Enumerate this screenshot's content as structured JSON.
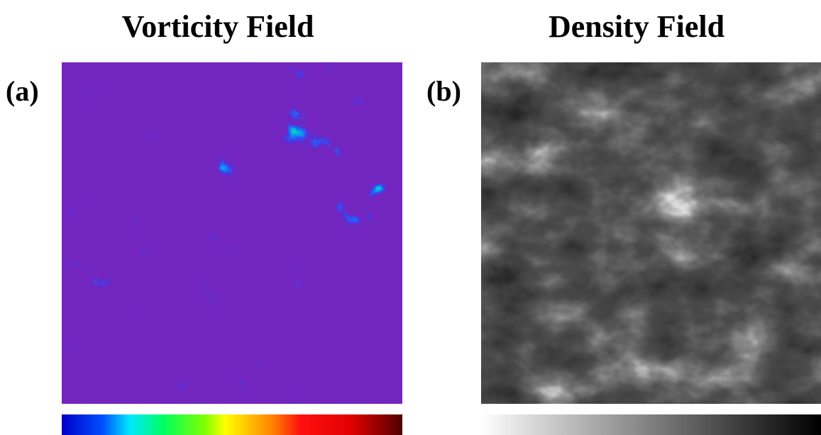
{
  "panels": [
    {
      "title": "Vorticity Field",
      "label": "(a)"
    },
    {
      "title": "Density Field",
      "label": "(b)"
    }
  ]
}
